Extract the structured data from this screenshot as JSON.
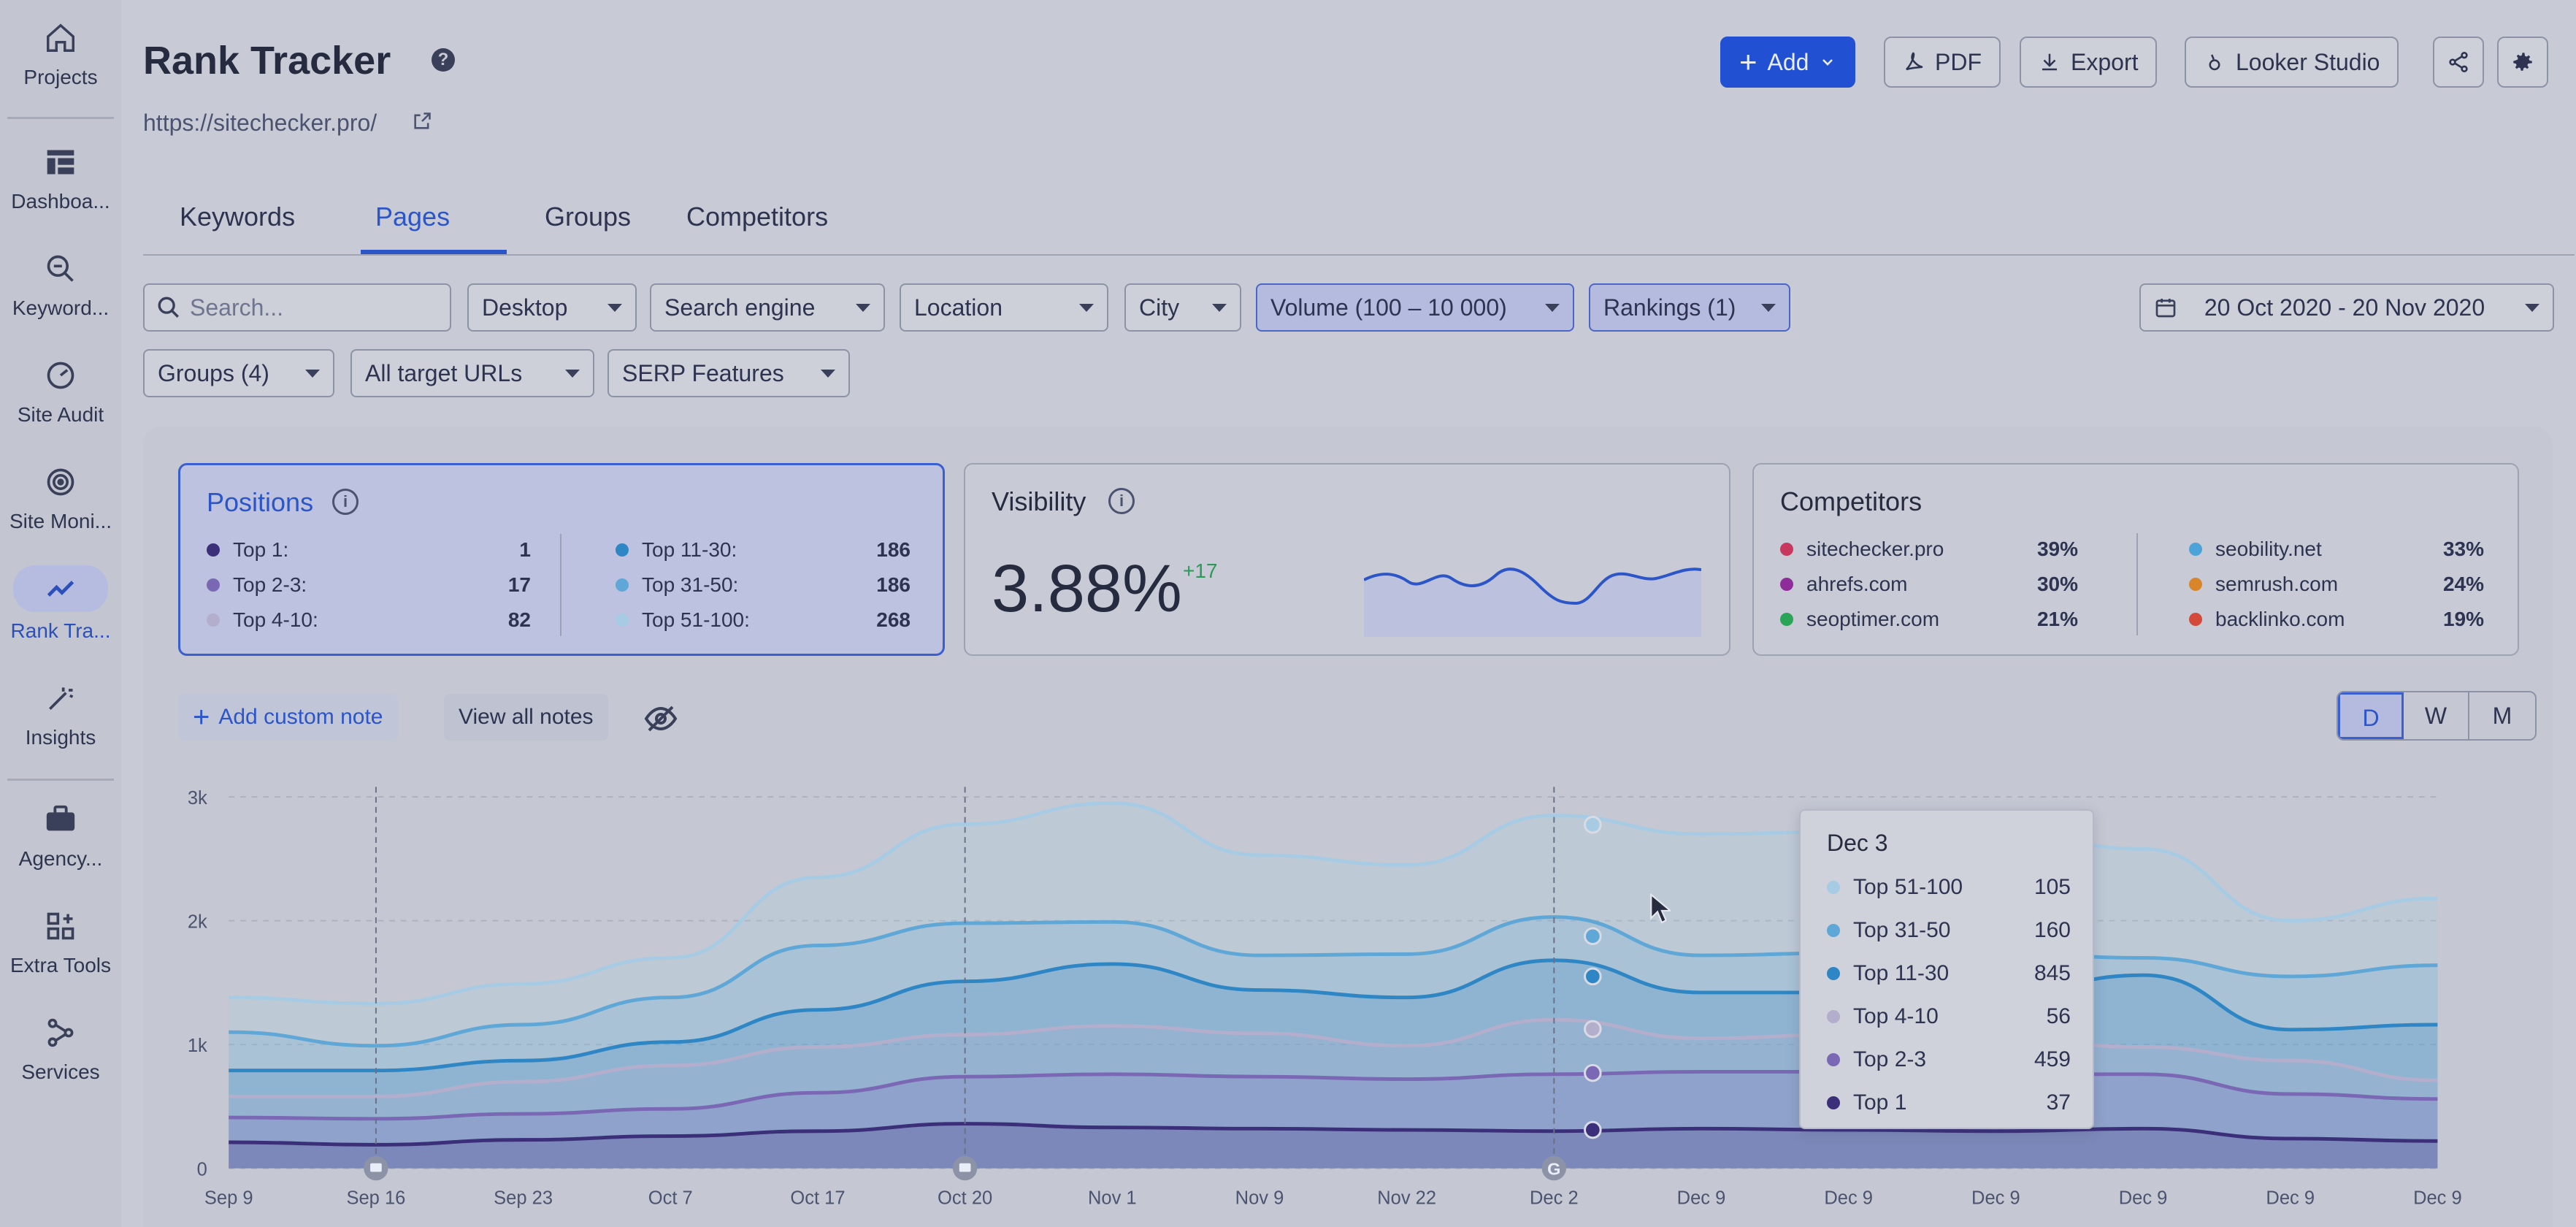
{
  "sidebar": {
    "items": [
      {
        "label": "Projects",
        "icon": "home-icon"
      },
      {
        "label": "Dashboa...",
        "icon": "table-icon"
      },
      {
        "label": "Keyword...",
        "icon": "keyword-search-icon"
      },
      {
        "label": "Site Audit",
        "icon": "gauge-icon"
      },
      {
        "label": "Site Moni...",
        "icon": "monitor-icon"
      },
      {
        "label": "Rank Tra...",
        "icon": "trend-icon"
      },
      {
        "label": "Insights",
        "icon": "magic-wand-icon"
      },
      {
        "label": "Agency...",
        "icon": "briefcase-icon"
      },
      {
        "label": "Extra Tools",
        "icon": "plus-grid-icon"
      },
      {
        "label": "Services",
        "icon": "nodes-icon"
      }
    ]
  },
  "header": {
    "title": "Rank Tracker",
    "url": "https://sitechecker.pro/",
    "buttons": {
      "add": "Add",
      "pdf": "PDF",
      "export": "Export",
      "looker": "Looker Studio"
    }
  },
  "tabs": [
    "Keywords",
    "Pages",
    "Groups",
    "Competitors"
  ],
  "filters": {
    "search_placeholder": "Search...",
    "device": "Desktop",
    "engine": "Search engine",
    "location": "Location",
    "city": "City",
    "volume": "Volume (100 – 10 000)",
    "rankings": "Rankings (1)",
    "date_range": "20 Oct 2020 - 20 Nov 2020",
    "groups": "Groups (4)",
    "target_urls": "All target URLs",
    "serp": "SERP Features"
  },
  "positions": {
    "title": "Positions",
    "left": [
      {
        "label": "Top 1:",
        "value": "1",
        "color": "#3b2f7a"
      },
      {
        "label": "Top 2-3:",
        "value": "17",
        "color": "#7a68b5"
      },
      {
        "label": "Top 4-10:",
        "value": "82",
        "color": "#b3aecb"
      }
    ],
    "right": [
      {
        "label": "Top 11-30:",
        "value": "186",
        "color": "#2f86c4"
      },
      {
        "label": "Top 31-50:",
        "value": "186",
        "color": "#5ea7d6"
      },
      {
        "label": "Top 51-100:",
        "value": "268",
        "color": "#a8cbe4"
      }
    ]
  },
  "visibility": {
    "title": "Visibility",
    "value": "3.88%",
    "delta": "+17"
  },
  "competitors": {
    "title": "Competitors",
    "left": [
      {
        "name": "sitechecker.pro",
        "pct": "39%",
        "color": "#c8385e"
      },
      {
        "name": "ahrefs.com",
        "pct": "30%",
        "color": "#8e2d9a"
      },
      {
        "name": "seoptimer.com",
        "pct": "21%",
        "color": "#2aa456"
      }
    ],
    "right": [
      {
        "name": "seobility.net",
        "pct": "33%",
        "color": "#4ba3d8"
      },
      {
        "name": "semrush.com",
        "pct": "24%",
        "color": "#d9862a"
      },
      {
        "name": "backlinko.com",
        "pct": "19%",
        "color": "#d34a3a"
      }
    ]
  },
  "notes": {
    "add": "Add custom note",
    "view": "View all notes"
  },
  "granularity": [
    "D",
    "W",
    "M"
  ],
  "chart_data": {
    "type": "area",
    "x": [
      "Sep 9",
      "Sep 16",
      "Sep 23",
      "Oct 7",
      "Oct 17",
      "Oct 20",
      "Nov 1",
      "Nov 9",
      "Nov 22",
      "Dec 2",
      "Dec 9",
      "Dec 9",
      "Dec 9",
      "Dec 9",
      "Dec 9",
      "Dec 9"
    ],
    "y_ticks": [
      "0",
      "1k",
      "2k",
      "3k"
    ],
    "ylim": [
      0,
      3000
    ],
    "series": [
      {
        "name": "Top 51-100",
        "color": "#a8cbe4",
        "values": [
          1380,
          1330,
          1490,
          1700,
          2350,
          2780,
          2950,
          2530,
          2450,
          2850,
          2700,
          2720,
          2720,
          2580,
          2000,
          2180
        ]
      },
      {
        "name": "Top 31-50",
        "color": "#5ea7d6",
        "values": [
          1100,
          990,
          1160,
          1380,
          1800,
          1980,
          1990,
          1720,
          1730,
          2030,
          1720,
          1740,
          1740,
          1700,
          1550,
          1640
        ]
      },
      {
        "name": "Top 11-30",
        "color": "#2f86c4",
        "values": [
          790,
          790,
          870,
          1020,
          1280,
          1510,
          1650,
          1440,
          1380,
          1680,
          1420,
          1420,
          1400,
          1560,
          1120,
          1160
        ]
      },
      {
        "name": "Top 4-10",
        "color": "#b3aecb",
        "values": [
          580,
          580,
          700,
          830,
          980,
          1080,
          1150,
          1090,
          990,
          1200,
          1050,
          1080,
          1050,
          980,
          870,
          710
        ]
      },
      {
        "name": "Top 2-3",
        "color": "#7a68b5",
        "values": [
          410,
          400,
          440,
          480,
          610,
          740,
          760,
          740,
          720,
          760,
          780,
          780,
          760,
          760,
          600,
          560
        ]
      },
      {
        "name": "Top 1",
        "color": "#3b2f7a",
        "values": [
          210,
          190,
          230,
          260,
          300,
          360,
          330,
          320,
          310,
          300,
          320,
          310,
          300,
          320,
          240,
          220
        ]
      }
    ],
    "note_markers": [
      "Sep 16",
      "Oct 20",
      "Dec 2"
    ],
    "tooltip": {
      "title": "Dec 3",
      "rows": [
        {
          "name": "Top 51-100",
          "value": "105",
          "color": "#a8cbe4"
        },
        {
          "name": "Top 31-50",
          "value": "160",
          "color": "#5ea7d6"
        },
        {
          "name": "Top 11-30",
          "value": "845",
          "color": "#2f86c4"
        },
        {
          "name": "Top 4-10",
          "value": "56",
          "color": "#b3aecb"
        },
        {
          "name": "Top 2-3",
          "value": "459",
          "color": "#7a68b5"
        },
        {
          "name": "Top 1",
          "value": "37",
          "color": "#3b2f7a"
        }
      ]
    }
  }
}
